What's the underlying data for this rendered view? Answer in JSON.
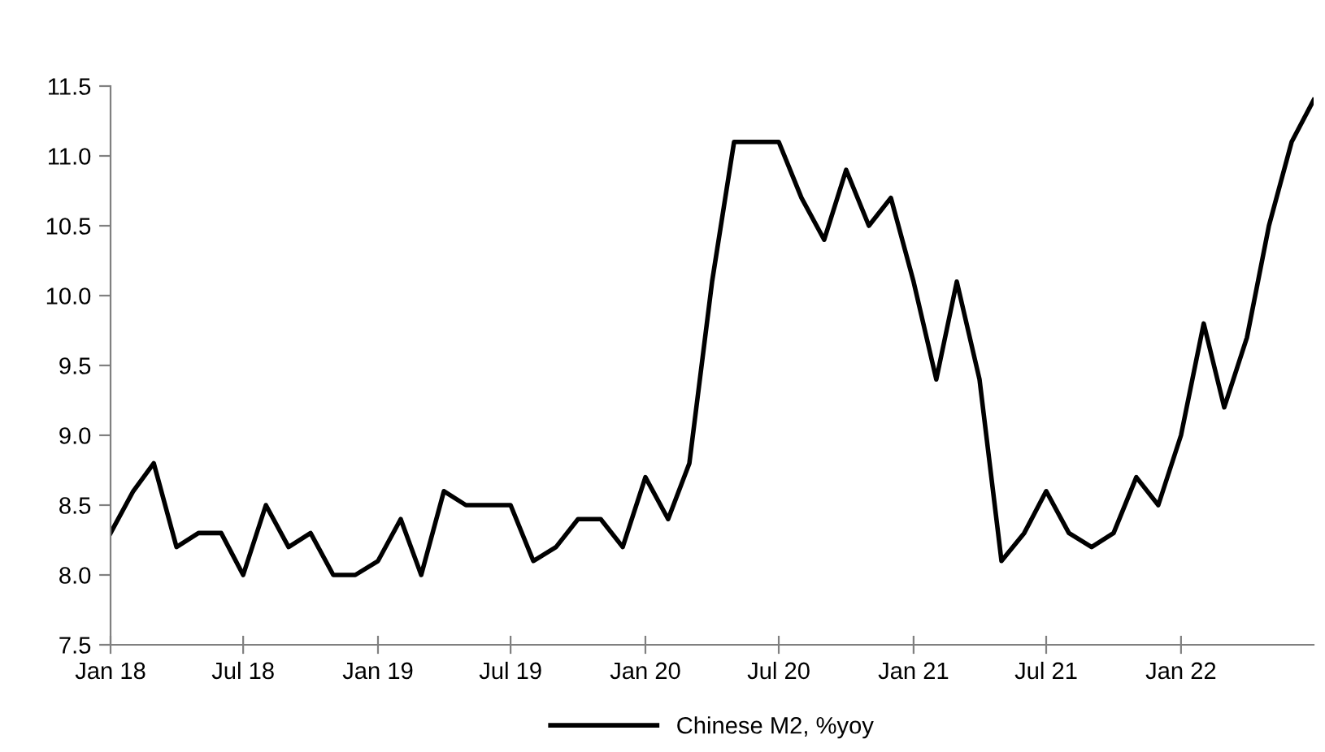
{
  "chart_data": {
    "type": "line",
    "x": [
      "2018-01",
      "2018-02",
      "2018-03",
      "2018-04",
      "2018-05",
      "2018-06",
      "2018-07",
      "2018-08",
      "2018-09",
      "2018-10",
      "2018-11",
      "2018-12",
      "2019-01",
      "2019-02",
      "2019-03",
      "2019-04",
      "2019-05",
      "2019-06",
      "2019-07",
      "2019-08",
      "2019-09",
      "2019-10",
      "2019-11",
      "2019-12",
      "2020-01",
      "2020-02",
      "2020-03",
      "2020-04",
      "2020-05",
      "2020-06",
      "2020-07",
      "2020-08",
      "2020-09",
      "2020-10",
      "2020-11",
      "2020-12",
      "2021-01",
      "2021-02",
      "2021-03",
      "2021-04",
      "2021-05",
      "2021-06",
      "2021-07",
      "2021-08",
      "2021-09",
      "2021-10",
      "2021-11",
      "2021-12",
      "2022-01",
      "2022-02",
      "2022-03",
      "2022-04",
      "2022-05",
      "2022-06",
      "2022-07"
    ],
    "series": [
      {
        "name": "Chinese M2, %yoy",
        "color": "#000000",
        "values": [
          8.3,
          8.6,
          8.8,
          8.2,
          8.3,
          8.3,
          8.0,
          8.5,
          8.2,
          8.3,
          8.0,
          8.0,
          8.1,
          8.4,
          8.0,
          8.6,
          8.5,
          8.5,
          8.5,
          8.1,
          8.2,
          8.4,
          8.4,
          8.2,
          8.7,
          8.4,
          8.8,
          10.1,
          11.1,
          11.1,
          11.1,
          10.7,
          10.4,
          10.9,
          10.5,
          10.7,
          10.1,
          9.4,
          10.1,
          9.4,
          8.1,
          8.3,
          8.6,
          8.3,
          8.2,
          8.3,
          8.7,
          8.5,
          9.0,
          9.8,
          9.2,
          9.7,
          10.5,
          11.1,
          11.4
        ]
      }
    ],
    "xlim": [
      "2018-01",
      "2022-07"
    ],
    "xticks": [
      {
        "value": "2018-01",
        "label": "Jan 18"
      },
      {
        "value": "2018-07",
        "label": "Jul 18"
      },
      {
        "value": "2019-01",
        "label": "Jan 19"
      },
      {
        "value": "2019-07",
        "label": "Jul 19"
      },
      {
        "value": "2020-01",
        "label": "Jan 20"
      },
      {
        "value": "2020-07",
        "label": "Jul 20"
      },
      {
        "value": "2021-01",
        "label": "Jan 21"
      },
      {
        "value": "2021-07",
        "label": "Jul 21"
      },
      {
        "value": "2022-01",
        "label": "Jan 22"
      }
    ],
    "ylim": [
      7.5,
      11.5
    ],
    "yticks": [
      {
        "value": 7.5,
        "label": "7.5"
      },
      {
        "value": 8,
        "label": "8.0"
      },
      {
        "value": 8.5,
        "label": "8.5"
      },
      {
        "value": 9,
        "label": "9.0"
      },
      {
        "value": 9.5,
        "label": "9.5"
      },
      {
        "value": 10,
        "label": "10.0"
      },
      {
        "value": 10.5,
        "label": "10.5"
      },
      {
        "value": 11,
        "label": "11.0"
      },
      {
        "value": 11.5,
        "label": "11.5"
      }
    ],
    "grid": false,
    "legend": "bottom",
    "marker": "none",
    "line_style": "solid"
  }
}
